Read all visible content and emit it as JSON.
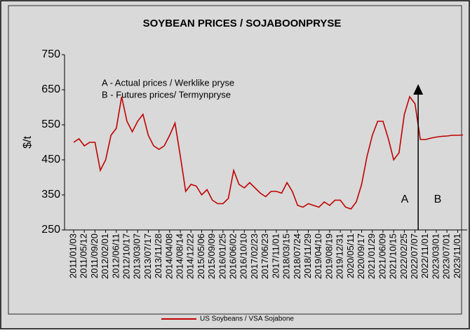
{
  "chart_data": {
    "type": "line",
    "title": "SOYBEAN PRICES / SOJABOONPRYSE",
    "y_label": "$/t",
    "annotations": [
      "A - Actual prices / Werklike pryse",
      "B - Futures prices/ Termynpryse",
      "A",
      "B"
    ],
    "categories": [
      "2011/01/03",
      null,
      "2011/05/12",
      null,
      "2011/09/20",
      null,
      "2012/02/01",
      null,
      "2012/06/11",
      null,
      "2012/10/17",
      null,
      "2013/03/07",
      null,
      "2013/07/17",
      null,
      "2013/11/28",
      null,
      "2014/04/08",
      null,
      "2014/08/14",
      null,
      "2014/12/22",
      null,
      "2015/05/06",
      null,
      "2015/09/09",
      null,
      "2016/01/25",
      null,
      "2016/06/02",
      null,
      "2016/10/10",
      null,
      "2017/02/23",
      null,
      "2017/06/23",
      null,
      "2017/11/01",
      null,
      "2018/03/15",
      null,
      "2018/07/24",
      null,
      "2018/11/29",
      null,
      "2019/04/10",
      null,
      "2019/08/19",
      null,
      "2019/12/31",
      null,
      "2020/05/11",
      null,
      "2020/09/17",
      null,
      "2021/01/29",
      null,
      "2021/06/09",
      null,
      "2021/10/15",
      null,
      "2022/02/25",
      null,
      "2022/07/07",
      null,
      "2022/11/01",
      null,
      "2023/03/01",
      null,
      "2023/07/01",
      null,
      "2023/11/01",
      null
    ],
    "series": [
      {
        "name": "US Soybeans / VSA Sojabone",
        "color": "#c00000",
        "values": [
          500,
          510,
          490,
          500,
          500,
          420,
          450,
          520,
          540,
          630,
          560,
          530,
          560,
          580,
          520,
          490,
          480,
          490,
          520,
          555,
          460,
          360,
          380,
          375,
          350,
          365,
          335,
          325,
          325,
          340,
          420,
          380,
          370,
          385,
          370,
          355,
          345,
          360,
          360,
          355,
          385,
          360,
          320,
          315,
          325,
          320,
          315,
          330,
          320,
          335,
          335,
          315,
          310,
          330,
          380,
          460,
          520,
          560,
          560,
          510,
          450,
          470,
          580,
          630,
          610,
          508,
          508,
          512,
          515,
          517,
          518,
          520,
          520,
          521
        ]
      }
    ],
    "ylim": [
      250,
      750
    ],
    "yticks": [
      250,
      350,
      450,
      550,
      650,
      750
    ],
    "grid": false,
    "legend": "bottom"
  }
}
